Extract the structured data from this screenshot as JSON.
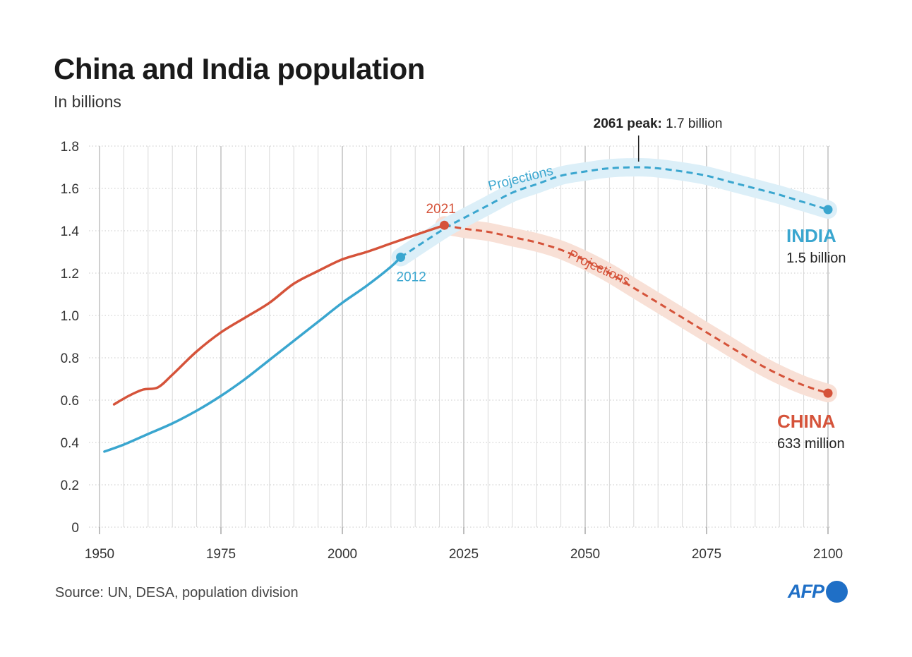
{
  "title": "China and India population",
  "subtitle": "In billions",
  "source": "Source: UN, DESA, population division",
  "logo_text": "AFP",
  "colors": {
    "india": "#3aa6cf",
    "china": "#d5533a",
    "india_band": "#dceff8",
    "china_band": "#f8e0d6",
    "grid": "#d9d9d9",
    "grid_major": "#c4c4c4",
    "logo": "#1f6fc6"
  },
  "annotations": {
    "peak_bold": "2061 peak:",
    "peak_rest": " 1.7 billion",
    "india_name": "INDIA",
    "india_value": "1.5 billion",
    "china_name": "CHINA",
    "china_value": "633 million",
    "india_marker": "2012",
    "china_marker": "2021",
    "india_projection": "Projections",
    "china_projection": "Projections"
  },
  "chart_data": {
    "type": "line",
    "title": "China and India population",
    "subtitle": "In billions",
    "xlabel": "",
    "ylabel": "",
    "xlim": [
      1950,
      2100
    ],
    "ylim": [
      0,
      1.8
    ],
    "x_ticks": [
      1950,
      1975,
      2000,
      2025,
      2050,
      2075,
      2100
    ],
    "x_tick_labels": [
      "1950",
      "1975",
      "2000",
      "2025",
      "2050",
      "2075",
      "2100"
    ],
    "y_ticks": [
      0,
      0.2,
      0.4,
      0.6,
      0.8,
      1.0,
      1.2,
      1.4,
      1.6,
      1.8
    ],
    "y_tick_labels": [
      "0",
      "0.2",
      "0.4",
      "0.6",
      "0.8",
      "1.0",
      "1.2",
      "1.4",
      "1.6",
      "1.8"
    ],
    "grid": true,
    "series": [
      {
        "name": "INDIA",
        "color": "#3aa6cf",
        "historical": [
          [
            1951,
            0.357
          ],
          [
            1955,
            0.39
          ],
          [
            1960,
            0.44
          ],
          [
            1965,
            0.49
          ],
          [
            1970,
            0.55
          ],
          [
            1975,
            0.62
          ],
          [
            1980,
            0.7
          ],
          [
            1985,
            0.79
          ],
          [
            1990,
            0.88
          ],
          [
            1995,
            0.97
          ],
          [
            2000,
            1.06
          ],
          [
            2005,
            1.14
          ],
          [
            2010,
            1.23
          ],
          [
            2012,
            1.275
          ]
        ],
        "projection": [
          [
            2012,
            1.275
          ],
          [
            2021,
            1.41
          ],
          [
            2025,
            1.46
          ],
          [
            2030,
            1.52
          ],
          [
            2035,
            1.58
          ],
          [
            2040,
            1.62
          ],
          [
            2045,
            1.66
          ],
          [
            2050,
            1.68
          ],
          [
            2055,
            1.695
          ],
          [
            2061,
            1.7
          ],
          [
            2065,
            1.695
          ],
          [
            2070,
            1.68
          ],
          [
            2075,
            1.66
          ],
          [
            2080,
            1.63
          ],
          [
            2085,
            1.6
          ],
          [
            2090,
            1.57
          ],
          [
            2095,
            1.535
          ],
          [
            2100,
            1.5
          ]
        ]
      },
      {
        "name": "CHINA",
        "color": "#d5533a",
        "historical": [
          [
            1953,
            0.58
          ],
          [
            1956,
            0.62
          ],
          [
            1959,
            0.65
          ],
          [
            1962,
            0.66
          ],
          [
            1965,
            0.72
          ],
          [
            1970,
            0.83
          ],
          [
            1975,
            0.92
          ],
          [
            1980,
            0.99
          ],
          [
            1985,
            1.06
          ],
          [
            1990,
            1.15
          ],
          [
            1995,
            1.21
          ],
          [
            2000,
            1.265
          ],
          [
            2005,
            1.3
          ],
          [
            2010,
            1.34
          ],
          [
            2015,
            1.38
          ],
          [
            2021,
            1.426
          ]
        ],
        "projection": [
          [
            2021,
            1.426
          ],
          [
            2025,
            1.41
          ],
          [
            2030,
            1.395
          ],
          [
            2035,
            1.37
          ],
          [
            2040,
            1.345
          ],
          [
            2045,
            1.31
          ],
          [
            2050,
            1.26
          ],
          [
            2055,
            1.2
          ],
          [
            2060,
            1.13
          ],
          [
            2065,
            1.06
          ],
          [
            2070,
            0.99
          ],
          [
            2075,
            0.92
          ],
          [
            2080,
            0.85
          ],
          [
            2085,
            0.78
          ],
          [
            2090,
            0.72
          ],
          [
            2095,
            0.67
          ],
          [
            2100,
            0.633
          ]
        ]
      }
    ],
    "markers": [
      {
        "series": "INDIA",
        "x": 2012,
        "y": 1.275,
        "label": "2012"
      },
      {
        "series": "CHINA",
        "x": 2021,
        "y": 1.426,
        "label": "2021"
      },
      {
        "series": "INDIA",
        "x": 2100,
        "y": 1.5,
        "label": "1.5 billion"
      },
      {
        "series": "CHINA",
        "x": 2100,
        "y": 0.633,
        "label": "633 million"
      }
    ],
    "peak_annotation": {
      "x": 2061,
      "y": 1.7,
      "label": "2061 peak: 1.7 billion"
    }
  }
}
